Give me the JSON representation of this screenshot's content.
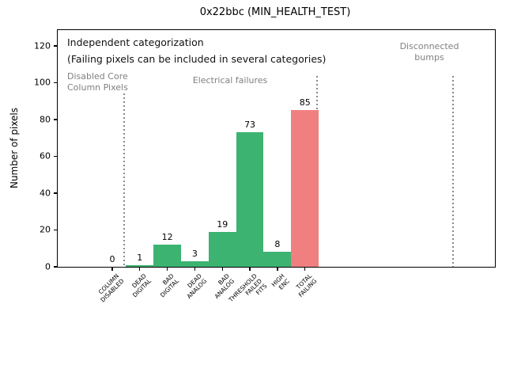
{
  "figure": {
    "title": "0x22bbc (MIN_HEALTH_TEST)"
  },
  "chart_data": {
    "type": "bar",
    "title": "0x22bbc (MIN_HEALTH_TEST)",
    "xlabel": "",
    "ylabel": "Number of pixels",
    "categories": [
      "COLUMN\nDISABLED",
      "DEAD\nDIGITAL",
      "BAD\nDIGITAL",
      "DEAD\nANALOG",
      "BAD\nANALOG",
      "THRESHOLD\nFAILED\nFITS",
      "HIGH\nENC",
      "TOTAL\nFAILING"
    ],
    "values": [
      0,
      1,
      12,
      3,
      19,
      73,
      8,
      85
    ],
    "bar_value_labels": [
      "0",
      "1",
      "12",
      "3",
      "19",
      "73",
      "8",
      "85"
    ],
    "bar_colors": [
      "#3cb371",
      "#3cb371",
      "#3cb371",
      "#3cb371",
      "#3cb371",
      "#3cb371",
      "#3cb371",
      "#f08080"
    ],
    "yticks": [
      0,
      20,
      40,
      60,
      80,
      100,
      120
    ],
    "ylim": [
      0,
      128.6
    ],
    "xlim": [
      -1.98,
      13.9
    ],
    "grid": false,
    "legend": null,
    "bar_width": 1.0,
    "section_divider_x": [
      0.42,
      7.43,
      12.39
    ],
    "annotations": {
      "note_line1": "Independent categorization",
      "note_line2": "(Failing pixels can be included in several categories)",
      "section_labels": [
        "Disabled Core\nColumn Pixels",
        "Electrical failures",
        "Disconnected\nbumps"
      ]
    },
    "colors": {
      "category_green": "#3cb371",
      "total_red": "#f08080",
      "annotation_gray": "#808080",
      "axis_black": "#000000"
    }
  }
}
